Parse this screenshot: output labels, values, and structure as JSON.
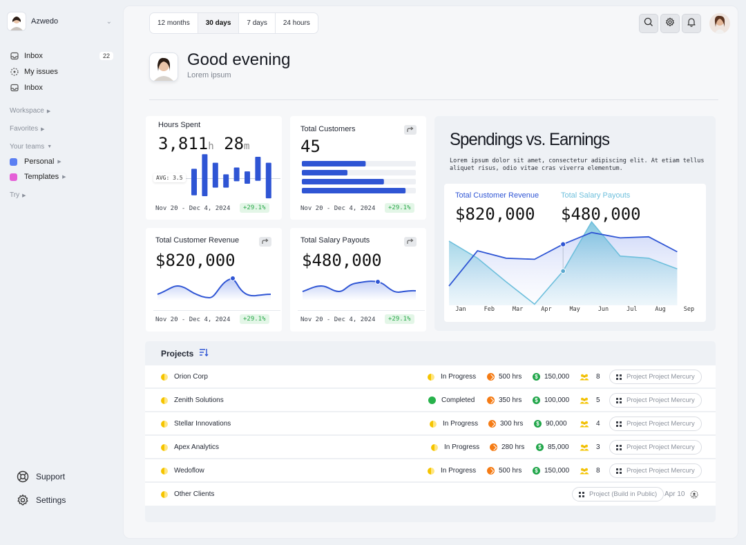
{
  "workspace": {
    "name": "Azwedo"
  },
  "sidebar": {
    "nav": [
      {
        "label": "Inbox",
        "badge": "22",
        "icon": "inbox-icon"
      },
      {
        "label": "My issues",
        "icon": "issues-icon"
      },
      {
        "label": "Inbox",
        "icon": "inbox-icon"
      }
    ],
    "sections": {
      "workspace": "Workspace",
      "favorites": "Favorites",
      "your_teams": "Your teams",
      "try": "Try"
    },
    "teams": [
      {
        "label": "Personal",
        "color": "#5b7ff2"
      },
      {
        "label": "Templates",
        "color": "#e55fd7"
      }
    ],
    "bottom": {
      "support": "Support",
      "settings": "Settings"
    }
  },
  "toolbar": {
    "ranges": [
      "12 months",
      "30 days",
      "7 days",
      "24 hours"
    ],
    "active_range": "30 days"
  },
  "greeting": {
    "title": "Good evening",
    "subtitle": "Lorem ipsum"
  },
  "cards": {
    "hours": {
      "title": "Hours Spent",
      "hours": "3,811",
      "h_unit": "h",
      "minutes": "28",
      "m_unit": "m",
      "avg_label": "AVG: 3.5",
      "range": "Nov 20 - Dec 4, 2024",
      "pct": "+29.1%",
      "bars": [
        {
          "up": 2.2,
          "down": 4.0
        },
        {
          "up": 5.6,
          "down": 4.2
        },
        {
          "up": 3.6,
          "down": 2.2
        },
        {
          "up": 0.9,
          "down": 2.2
        },
        {
          "up": 2.5,
          "down": 0.7
        },
        {
          "up": 1.6,
          "down": 1.3
        },
        {
          "up": 5.0,
          "down": 0.6
        },
        {
          "up": 3.6,
          "down": 4.7
        }
      ]
    },
    "customers": {
      "title": "Total Customers",
      "value": "45",
      "range": "Nov 20 - Dec 4, 2024",
      "pct": "+29.1%",
      "bars": [
        0.56,
        0.4,
        0.72,
        0.91
      ]
    },
    "revenue": {
      "title": "Total Customer Revenue",
      "value": "$820,000",
      "range": "Nov 20 - Dec 4, 2024",
      "pct": "+29.1%"
    },
    "payouts": {
      "title": "Total Salary Payouts",
      "value": "$480,000",
      "range": "Nov 20 - Dec 4, 2024",
      "pct": "+29.1%"
    }
  },
  "spending": {
    "title": "Spendings vs. Earnings",
    "description": "Lorem ipsum dolor sit amet, consectetur adipiscing elit. At etiam tellus aliquet risus, odio vitae cras viverra elementum.",
    "revenue_label": "Total Customer Revenue",
    "revenue_value": "$820,000",
    "payout_label": "Total Salary Payouts",
    "payout_value": "$480,000",
    "colors": {
      "revenue": "#2f55d4",
      "payout": "#6dbfdc"
    }
  },
  "chart_data": {
    "type": "line",
    "categories": [
      "Jan",
      "Feb",
      "Mar",
      "Apr",
      "May",
      "Jun",
      "Jul",
      "Aug",
      "Sep"
    ],
    "series": [
      {
        "name": "Total Customer Revenue",
        "values": [
          16,
          49,
          42,
          41,
          55,
          66,
          61,
          62,
          48
        ]
      },
      {
        "name": "Total Salary Payouts",
        "values": [
          58,
          42,
          20,
          -1,
          30,
          76,
          44,
          42,
          32
        ]
      }
    ],
    "grid": false
  },
  "projects": {
    "title": "Projects",
    "rows": [
      {
        "name": "Orion Corp",
        "status": "In Progress",
        "hours": "500 hrs",
        "amount": "150,000",
        "members": "8",
        "tag": "Project Project Mercury"
      },
      {
        "name": "Zenith Solutions",
        "status": "Completed",
        "hours": "350 hrs",
        "amount": "100,000",
        "members": "5",
        "tag": "Project Project Mercury"
      },
      {
        "name": "Stellar Innovations",
        "status": "In Progress",
        "hours": "300 hrs",
        "amount": "90,000",
        "members": "4",
        "tag": "Project Project Mercury"
      },
      {
        "name": "Apex Analytics",
        "status": "In Progress",
        "hours": "280 hrs",
        "amount": "85,000",
        "members": "3",
        "tag": "Project Project Mercury"
      },
      {
        "name": "Wedoflow",
        "status": "In Progress",
        "hours": "500 hrs",
        "amount": "150,000",
        "members": "8",
        "tag": "Project Project Mercury"
      }
    ],
    "other": {
      "name": "Other Clients",
      "tag": "Project (Build in Public)",
      "date": "Apr 10"
    }
  }
}
